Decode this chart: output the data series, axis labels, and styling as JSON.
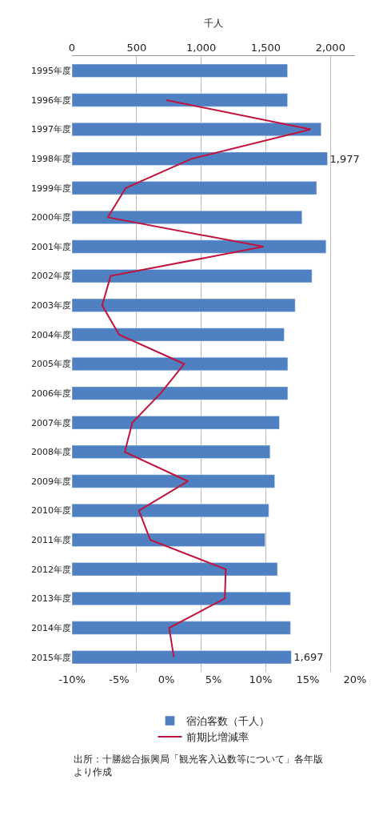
{
  "chart_data": {
    "type": "bar",
    "orientation": "horizontal",
    "xlabel": "千人",
    "categories": [
      "1995年度",
      "1996年度",
      "1997年度",
      "1998年度",
      "1999年度",
      "2000年度",
      "2001年度",
      "2002年度",
      "2003年度",
      "2004年度",
      "2005年度",
      "2006年度",
      "2007年度",
      "2008年度",
      "2009年度",
      "2010年度",
      "2011年度",
      "2012年度",
      "2013年度",
      "2014年度",
      "2015年度"
    ],
    "series": [
      {
        "name": "宿泊客数（千人）",
        "color": "#4f81c2",
        "values": [
          1668,
          1668,
          1928,
          1977,
          1893,
          1780,
          1966,
          1857,
          1727,
          1642,
          1670,
          1670,
          1605,
          1533,
          1569,
          1523,
          1494,
          1590,
          1691,
          1691,
          1697
        ],
        "value_labels": [
          null,
          null,
          null,
          "1,977",
          null,
          null,
          null,
          null,
          null,
          null,
          null,
          null,
          null,
          null,
          null,
          null,
          null,
          null,
          null,
          null,
          "1,697"
        ]
      },
      {
        "name": "前期比増減率",
        "type": "line",
        "axis": "x2",
        "color": "#c0143c",
        "values": [
          null,
          0.0,
          15.3,
          2.7,
          -4.3,
          -6.2,
          10.3,
          -5.9,
          -6.8,
          -5.0,
          1.9,
          -0.6,
          -3.6,
          -4.4,
          2.3,
          -2.9,
          -1.7,
          6.3,
          6.2,
          0.3,
          0.8
        ]
      }
    ],
    "xlim": [
      0,
      2190
    ],
    "xticks": [
      0,
      500,
      {
        "value": 1000,
        "label": "1,000"
      },
      {
        "value": 1500,
        "label": "1,500"
      },
      {
        "value": 2000,
        "label": "2,000"
      }
    ],
    "x2lim": [
      -10,
      20
    ],
    "x2ticks": [
      {
        "value": -10,
        "label": "-10%"
      },
      {
        "value": -5,
        "label": "-5%"
      },
      {
        "value": 0,
        "label": "0%"
      },
      {
        "value": 5,
        "label": "5%"
      },
      {
        "value": 10,
        "label": "10%"
      },
      {
        "value": 15,
        "label": "15%"
      },
      {
        "value": 20,
        "label": "20%"
      }
    ],
    "grid": "x",
    "legend": "bottom",
    "marker": "none",
    "line_style": "solid",
    "annotations": [
      "出所：十勝総合振興局「観光客入込数等について」各年版より作成"
    ]
  }
}
